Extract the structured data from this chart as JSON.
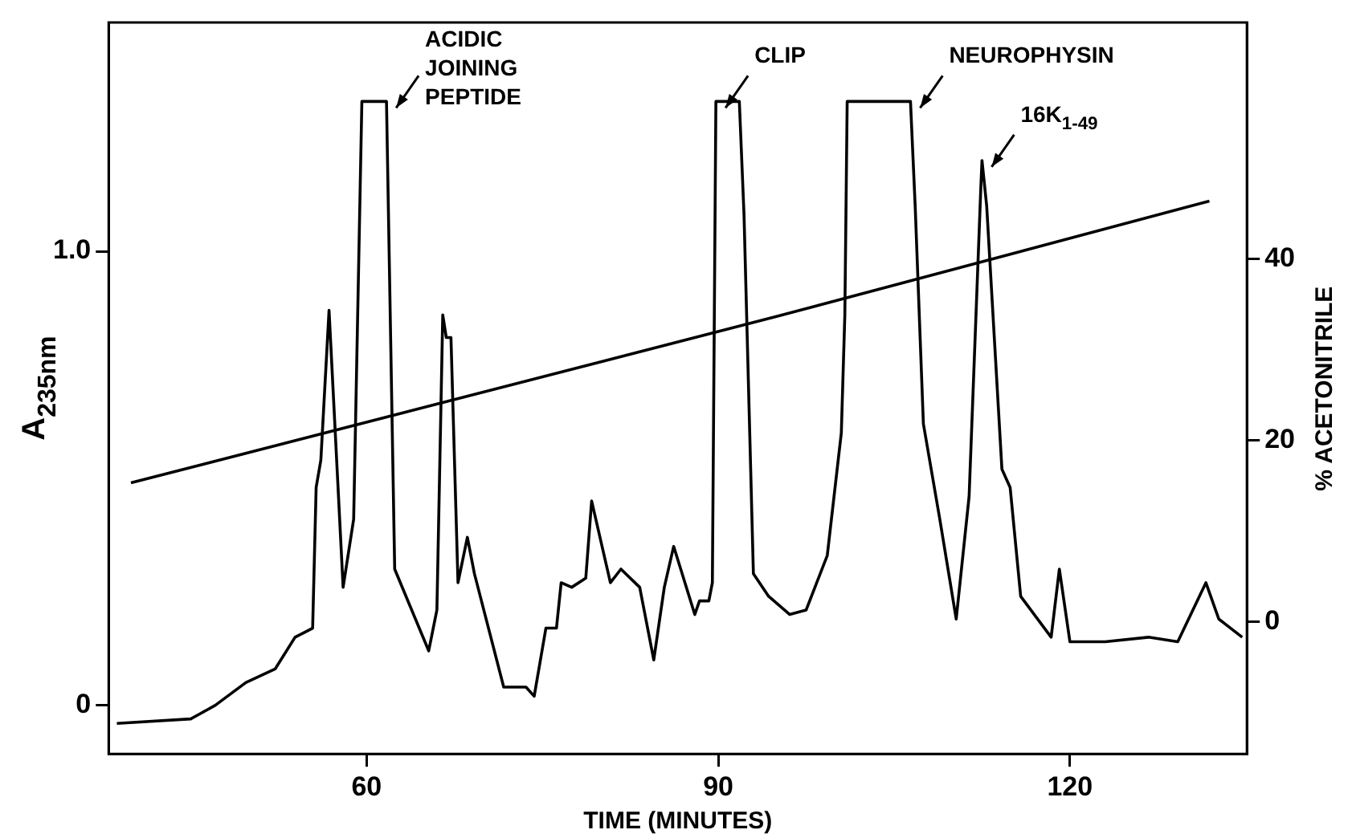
{
  "chart_data": {
    "type": "line",
    "xlabel": "TIME (MINUTES)",
    "ylabel": "A$_{235nm}$",
    "y2label": "% ACETONITRILE",
    "xlim": [
      38,
      135.1
    ],
    "xticks": [
      60,
      90,
      120
    ],
    "ylim": [
      -0.107,
      1.504
    ],
    "yticks": [
      0,
      {
        "value": 1,
        "label": "1.0"
      }
    ],
    "y2lim": [
      -14.6,
      66.1
    ],
    "y2ticks": [
      0,
      20,
      40
    ],
    "grid": false,
    "legend": false,
    "marker": "none",
    "line_style": "solid",
    "series": [
      {
        "color": "#000000",
        "x": [
          38.7,
          45.0,
          45.7,
          47.1,
          49.7,
          52.2,
          53.9,
          55.4,
          55.7,
          56.1,
          56.8,
          58.0,
          58.9,
          59.6,
          61.7,
          62.4,
          65.3,
          66.0,
          66.5,
          66.8,
          67.2,
          67.8,
          68.6,
          69.2,
          71.7,
          73.6,
          74.3,
          75.3,
          76.2,
          76.6,
          77.5,
          78.7,
          79.2,
          80.8,
          81.7,
          83.3,
          84.5,
          85.4,
          86.2,
          88.0,
          88.4,
          89.2,
          89.5,
          89.8,
          91.8,
          92.2,
          93.0,
          94.3,
          96.1,
          97.5,
          99.3,
          100.5,
          100.8,
          101.0,
          106.4,
          106.8,
          107.5,
          108.9,
          110.3,
          111.4,
          112.4,
          112.5,
          112.9,
          114.2,
          114.9,
          115.8,
          118.4,
          119.1,
          120.0,
          121.6,
          123.0,
          126.7,
          129.2,
          131.6,
          132.7,
          134.7
        ],
        "values": [
          -0.04,
          -0.03,
          -0.02,
          0.0,
          0.05,
          0.08,
          0.15,
          0.17,
          0.48,
          0.54,
          0.87,
          0.26,
          0.41,
          1.33,
          1.33,
          0.3,
          0.12,
          0.21,
          0.86,
          0.81,
          0.81,
          0.27,
          0.37,
          0.29,
          0.04,
          0.04,
          0.02,
          0.17,
          0.17,
          0.27,
          0.26,
          0.28,
          0.45,
          0.27,
          0.3,
          0.26,
          0.1,
          0.26,
          0.35,
          0.2,
          0.23,
          0.23,
          0.27,
          1.33,
          1.33,
          1.08,
          0.29,
          0.24,
          0.2,
          0.21,
          0.33,
          0.6,
          0.86,
          1.33,
          1.33,
          1.1,
          0.62,
          0.41,
          0.19,
          0.46,
          1.14,
          1.2,
          1.1,
          0.52,
          0.48,
          0.24,
          0.15,
          0.3,
          0.14,
          0.14,
          0.14,
          0.15,
          0.14,
          0.27,
          0.19,
          0.15
        ]
      },
      {
        "color": "#000000",
        "axis": "y2",
        "x": [
          39.9,
          95.1,
          131.9
        ],
        "values": [
          15.3,
          33.7,
          46.4
        ]
      }
    ],
    "annotations": [
      {
        "text": "ACIDIC JOINING PEPTIDE",
        "x": 61.7,
        "y": 1.33
      },
      {
        "text": "CLIP",
        "x": 89.8,
        "y": 1.33
      },
      {
        "text": "NEUROPHYSIN",
        "x": 106.4,
        "y": 1.33
      },
      {
        "text": "16K$_{1-49}$",
        "x": 112.5,
        "y": 1.2
      }
    ]
  }
}
